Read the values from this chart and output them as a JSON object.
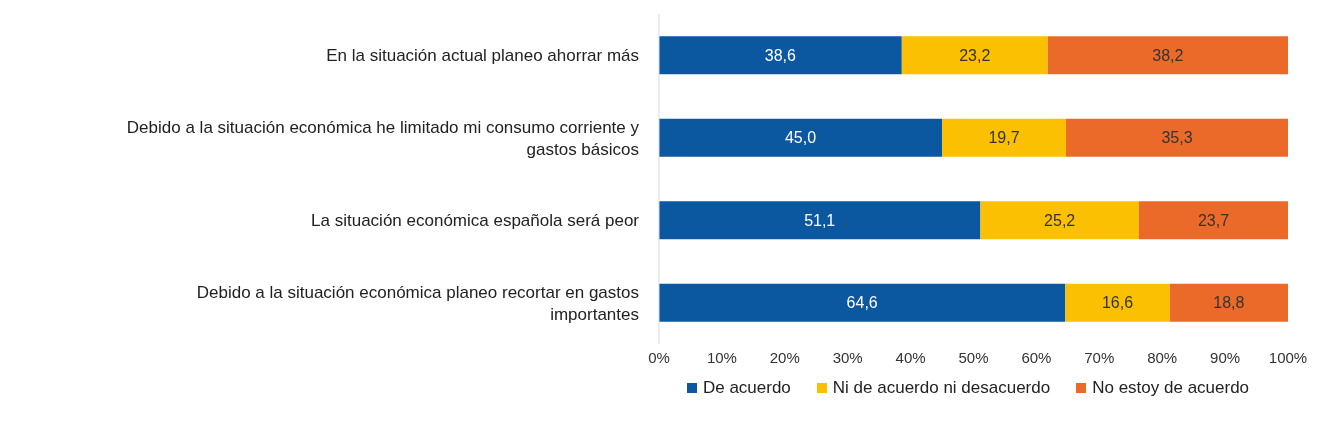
{
  "chart_data": {
    "type": "bar",
    "orientation": "horizontal",
    "stacked": true,
    "categories": [
      "En la situación actual planeo ahorrar más",
      "Debido a la situación económica he limitado mi consumo corriente y gastos básicos",
      "La situación económica española será peor",
      "Debido a la situación económica planeo recortar en gastos importantes"
    ],
    "series": [
      {
        "name": "De acuerdo",
        "color": "#0b57a0",
        "values": [
          38.6,
          45.0,
          51.1,
          64.6
        ],
        "value_labels": [
          "38,6",
          "45,0",
          "51,1",
          "64,6"
        ]
      },
      {
        "name": "Ni de acuerdo ni desacuerdo",
        "color": "#fbc002",
        "values": [
          23.2,
          19.7,
          25.2,
          16.6
        ],
        "value_labels": [
          "23,2",
          "19,7",
          "25,2",
          "16,6"
        ]
      },
      {
        "name": "No estoy de acuerdo",
        "color": "#eb6a2a",
        "values": [
          38.2,
          35.3,
          23.7,
          18.8
        ],
        "value_labels": [
          "38,2",
          "35,3",
          "23,7",
          "18,8"
        ]
      }
    ],
    "xlim": [
      0,
      100
    ],
    "xticks": [
      {
        "value": 0,
        "label": "0%"
      },
      {
        "value": 10,
        "label": "10%"
      },
      {
        "value": 20,
        "label": "20%"
      },
      {
        "value": 30,
        "label": "30%"
      },
      {
        "value": 40,
        "label": "40%"
      },
      {
        "value": 50,
        "label": "50%"
      },
      {
        "value": 60,
        "label": "60%"
      },
      {
        "value": 70,
        "label": "70%"
      },
      {
        "value": 80,
        "label": "80%"
      },
      {
        "value": 90,
        "label": "90%"
      },
      {
        "value": 100,
        "label": "100%"
      }
    ],
    "grid": false,
    "legend": "bottom"
  }
}
